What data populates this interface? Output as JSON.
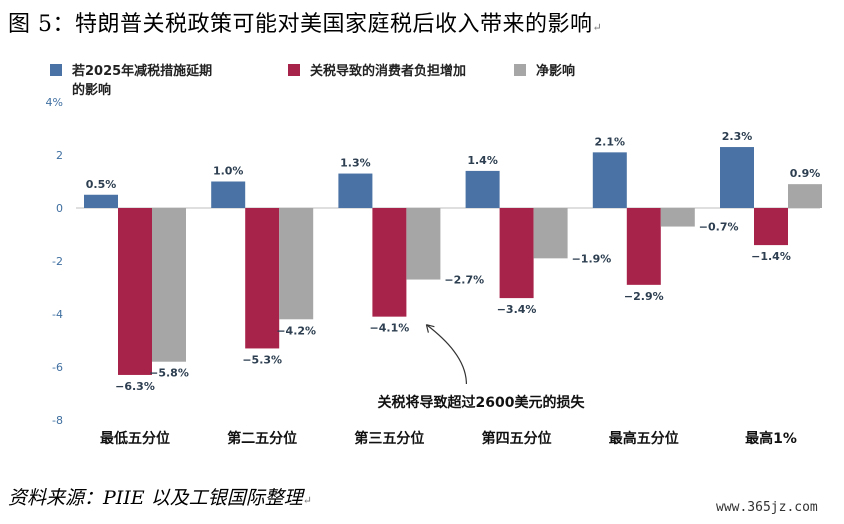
{
  "figure": {
    "title": "图 5：特朗普关税政策可能对美国家庭税后收入带来的影响",
    "source": "资料来源：PIIE 以及工银国际整理",
    "watermark": "www.365jz.com"
  },
  "chart_data": {
    "type": "bar",
    "categories": [
      "最低五分位",
      "第二五分位",
      "第三五分位",
      "第四五分位",
      "最高五分位",
      "最高1%"
    ],
    "series": [
      {
        "name": "若2025年减税措施延期的影响",
        "color": "#4a72a4",
        "values": [
          0.5,
          1.0,
          1.3,
          1.4,
          2.1,
          2.3
        ]
      },
      {
        "name": "关税导致的消费者负担增加",
        "color": "#a8234a",
        "values": [
          -6.3,
          -5.3,
          -4.1,
          -3.4,
          -2.9,
          -1.4
        ]
      },
      {
        "name": "净影响",
        "color": "#a6a6a6",
        "values": [
          -5.8,
          -4.2,
          -2.7,
          -1.9,
          -0.7,
          0.9
        ]
      }
    ],
    "ylim": [
      -8,
      4
    ],
    "yticks": [
      4,
      2,
      0,
      -2,
      -4,
      -6,
      -8
    ],
    "ytick_labels": [
      "4%",
      "2",
      "0",
      "-2",
      "-4",
      "-6",
      "-8"
    ],
    "grid": false,
    "legend_position": "top",
    "annotation": {
      "text": "关税将导致超过2600美元的损失",
      "target_category": "第三五分位",
      "target_series": 1
    }
  }
}
